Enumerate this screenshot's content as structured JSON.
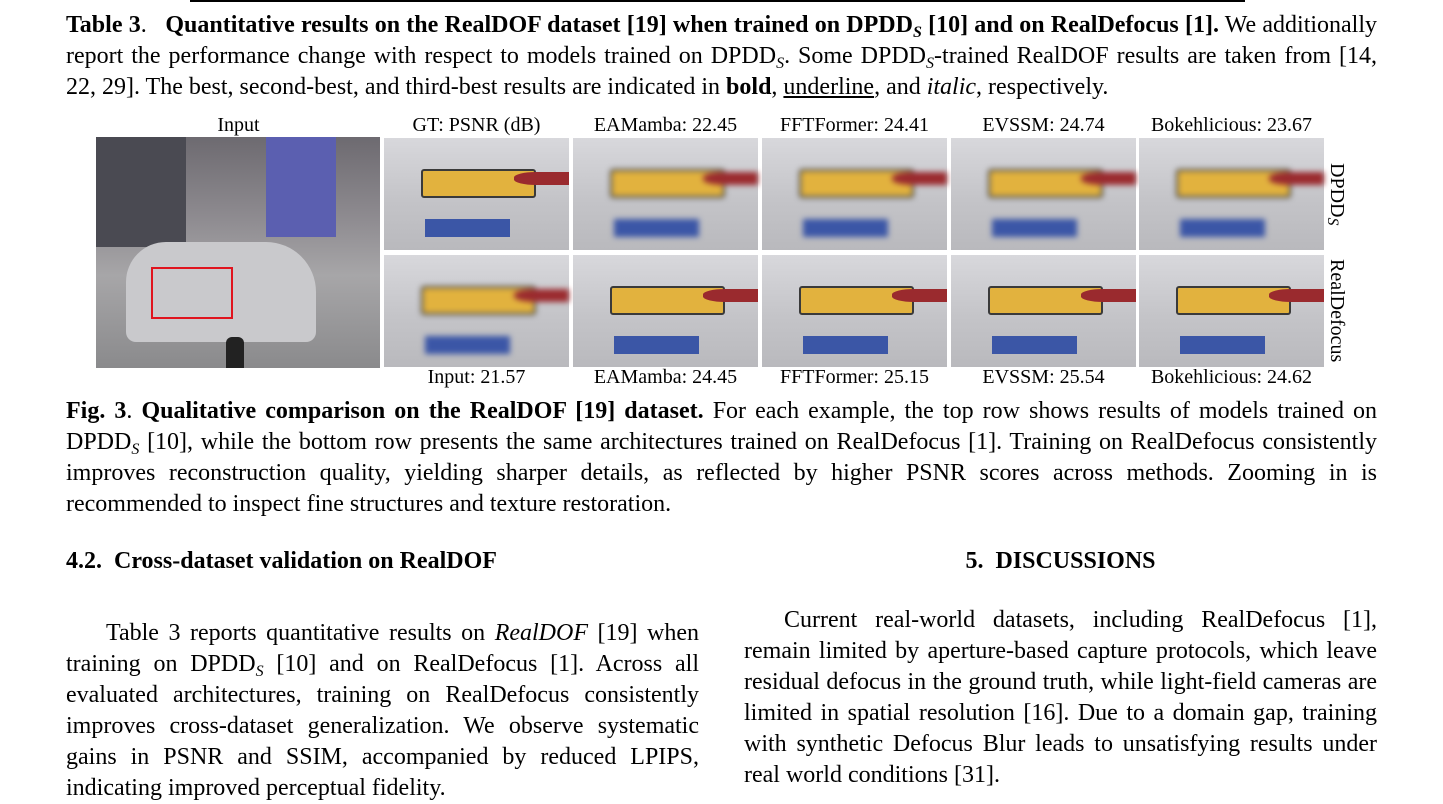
{
  "table_caption": {
    "runs": [
      "Table 3",
      ".",
      "Quantitative results on the RealDOF dataset [19] when trained on DPDD",
      "S",
      " [10] and on RealDefocus [1].",
      " We additionally report the performance change with respect to models trained on DPDD",
      "S",
      ". Some DPDD",
      "S",
      "-trained RealDOF results are taken from [14, 22, 29]. The best, second-best, and third-best results are indicated in ",
      "bold",
      ", ",
      "underline",
      ", and ",
      "italic",
      ", respectively."
    ]
  },
  "figure": {
    "top_labels": [
      "Input",
      "GT: PSNR (dB)",
      "EAMamba: 22.45",
      "FFTFormer: 24.41",
      "EVSSM: 24.74",
      "Bokehlicious: 23.67"
    ],
    "bottom_labels": [
      "Input: 21.57",
      "EAMamba: 24.45",
      "FFTFormer: 25.15",
      "EVSSM: 25.54",
      "Bokehlicious: 24.62"
    ],
    "row_labels": {
      "top": "DPDD",
      "top_sub": "S",
      "bottom": "RealDefocus"
    }
  },
  "figure_caption": {
    "runs": [
      "Fig. 3",
      ".",
      "Qualitative comparison on the RealDOF [19] dataset.",
      " For each example, the top row shows results of models trained on DPDD",
      "S",
      " [10], while the bottom row presents the same architectures trained on RealDefocus [1]. Training on RealDefocus consistently improves reconstruction quality, yielding sharper details, as reflected by higher PSNR scores across methods. Zooming in is recommended to inspect fine structures and texture restoration."
    ]
  },
  "section_4_2": {
    "number": "4.2.",
    "title": "Cross-dataset validation on RealDOF",
    "runs": [
      "Table 3 reports quantitative results on ",
      "RealDOF",
      " [19] when training on DPDD",
      "S",
      " [10] and on RealDefocus [1]. Across all evaluated architectures, training on RealDefocus consistently improves cross-dataset generalization. We observe systematic gains in PSNR and SSIM, accompanied by reduced LPIPS, indicating improved perceptual fidelity."
    ]
  },
  "section_5": {
    "number": "5.",
    "title": "DISCUSSIONS",
    "text": "Current real-world datasets, including RealDefocus [1], remain limited by aperture-based capture protocols, which leave residual defocus in the ground truth, while light-field cameras are limited in spatial resolution [16]. Due to a domain gap, training with synthetic Defocus Blur leads to unsatisfying results under real world conditions [31]."
  }
}
